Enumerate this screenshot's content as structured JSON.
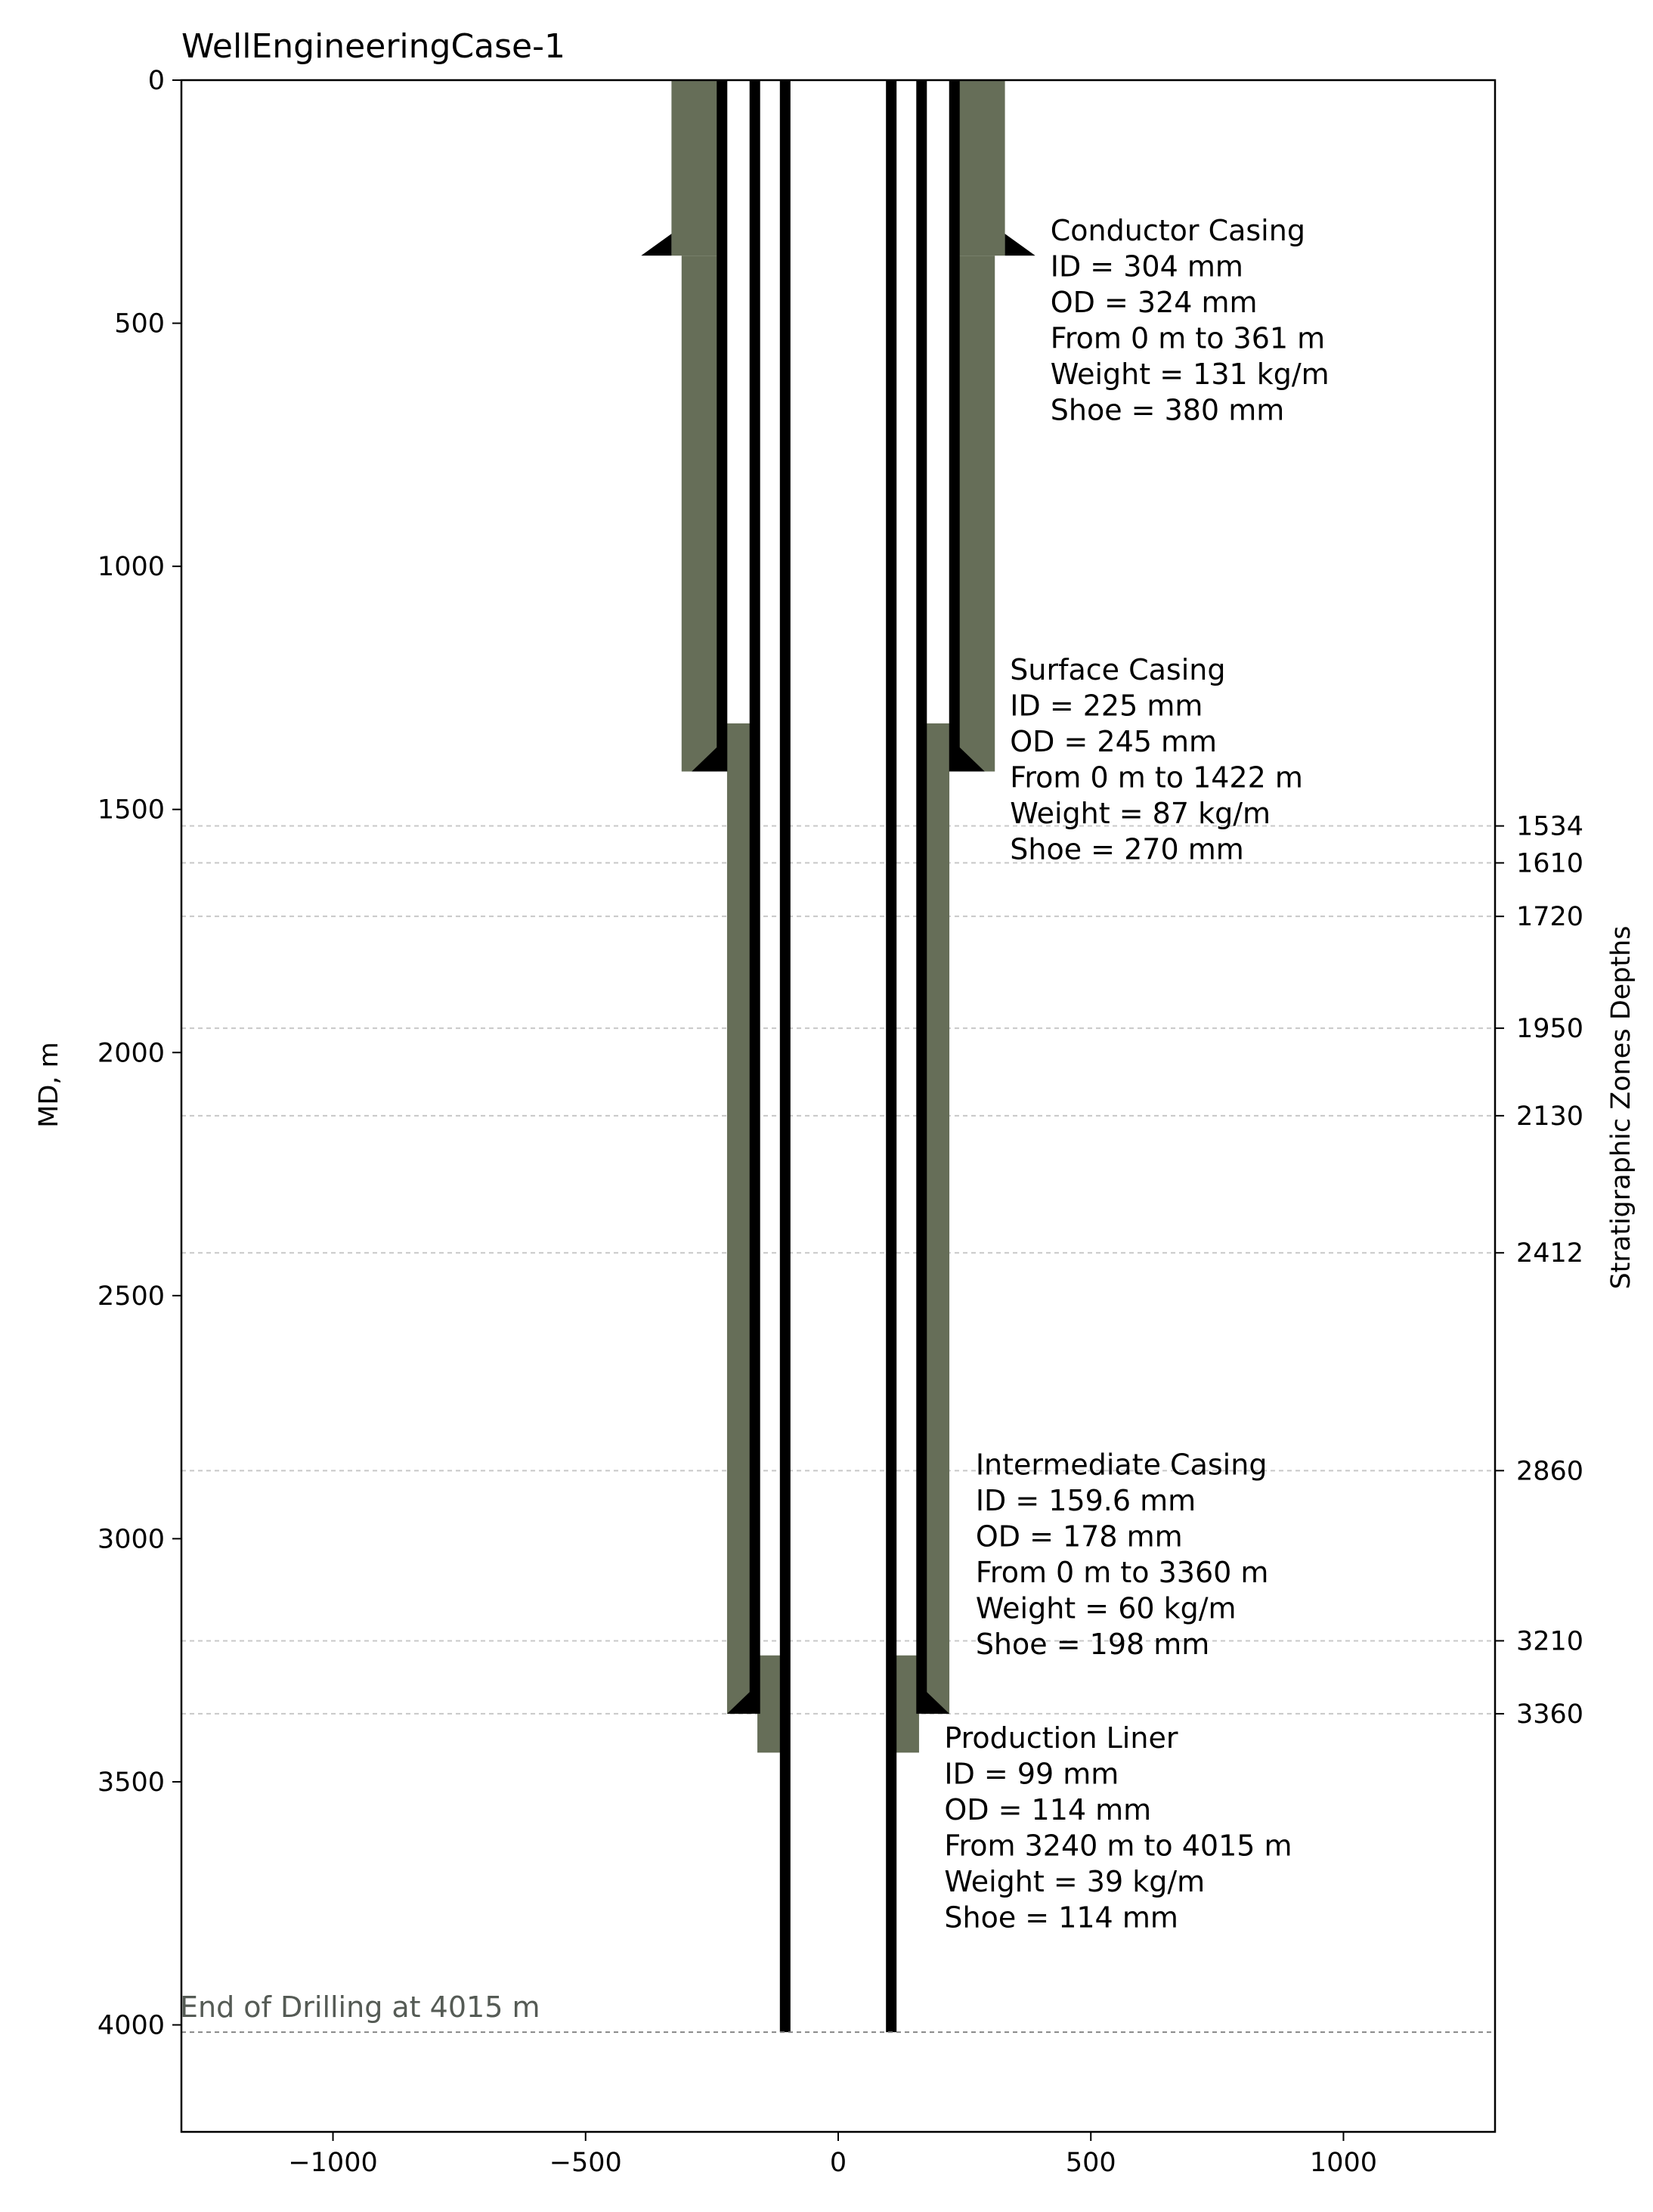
{
  "chart_data": {
    "type": "well-schematic",
    "title": "WellEngineeringCase-1",
    "ylabel": "MD, m",
    "y2label": "Stratigraphic Zones Depths",
    "xlim": [
      -1300,
      1300
    ],
    "ylim": [
      4220,
      0
    ],
    "xticks": [
      -1000,
      -500,
      0,
      500,
      1000
    ],
    "xtick_labels": [
      "−1000",
      "−500",
      "0",
      "500",
      "1000"
    ],
    "yticks": [
      0,
      500,
      1000,
      1500,
      2000,
      2500,
      3000,
      3500,
      4000
    ],
    "yticks_right": [
      1534,
      1610,
      1720,
      1950,
      2130,
      2412,
      2860,
      3210,
      3360
    ],
    "colors": {
      "cement": "#666e58",
      "pipe": "#000000",
      "grid": "#c8c8c8",
      "end_line": "#888888",
      "end_text": "#555b55"
    },
    "strings": [
      {
        "name": "Conductor Casing",
        "id_mm": 304,
        "od_mm": 324,
        "from_m": 0,
        "to_m": 361,
        "weight": 131,
        "shoe_mm": 380,
        "cement": {
          "inner_x": 240,
          "outer_x": 330,
          "top_m": 0,
          "bottom_m": 361
        },
        "cement_ext": {
          "inner_x": 240,
          "outer_x": 310,
          "top_m": 361,
          "bottom_m": 1422
        },
        "pipe_x": 230,
        "pipe_bottom_m": 1422,
        "shoe": {
          "x": 330,
          "size_x": 60,
          "size_y": 45,
          "depth_m": 361
        },
        "lines": [
          "Conductor Casing",
          "ID = 304 mm",
          "OD = 324 mm",
          "From 0 m to 361 m",
          "Weight = 131 kg/m",
          "Shoe = 380 mm"
        ],
        "label_pos": {
          "x": 420,
          "y": 330
        }
      },
      {
        "name": "Surface Casing",
        "id_mm": 225,
        "od_mm": 245,
        "from_m": 0,
        "to_m": 1422,
        "weight": 87,
        "shoe_mm": 270,
        "cement": {
          "inner_x": 170,
          "outer_x": 220,
          "top_m": 1323,
          "bottom_m": 3360
        },
        "pipe_x": 165,
        "pipe_bottom_m": 3360,
        "shoe": {
          "x": 240,
          "size_x": 50,
          "size_y": 50,
          "depth_m": 1422
        },
        "lines": [
          "Surface Casing",
          "ID = 225 mm",
          "OD = 245 mm",
          "From 0 m to 1422 m",
          "Weight = 87 kg/m",
          "Shoe = 270 mm"
        ],
        "label_pos": {
          "x": 340,
          "y": 1233
        }
      },
      {
        "name": "Intermediate Casing",
        "id_mm": 159.6,
        "od_mm": 178,
        "from_m": 0,
        "to_m": 3360,
        "weight": 60,
        "shoe_mm": 198,
        "cement": {
          "inner_x": 105,
          "outer_x": 160,
          "top_m": 3240,
          "bottom_m": 3440
        },
        "pipe_x": 105,
        "pipe_bottom_m": 4015,
        "shoe": {
          "x": 175,
          "size_x": 45,
          "size_y": 45,
          "depth_m": 3360
        },
        "lines": [
          "Intermediate Casing",
          "ID = 159.6 mm",
          "OD = 178 mm",
          "From 0 m to 3360 m",
          "Weight = 60 kg/m",
          "Shoe = 198 mm"
        ],
        "label_pos": {
          "x": 272,
          "y": 2868
        }
      },
      {
        "name": "Production Liner",
        "id_mm": 99,
        "od_mm": 114,
        "from_m": 3240,
        "to_m": 4015,
        "weight": 39,
        "shoe_mm": 114,
        "lines": [
          "Production Liner",
          "ID = 99 mm",
          "OD = 114 mm",
          "From 3240 m to 4015 m",
          "Weight = 39 kg/m",
          "Shoe = 114 mm"
        ],
        "label_pos": {
          "x": 210,
          "y": 3430
        }
      }
    ],
    "end_of_drilling": {
      "depth_m": 4015,
      "label": "End of Drilling at 4015 m"
    }
  }
}
